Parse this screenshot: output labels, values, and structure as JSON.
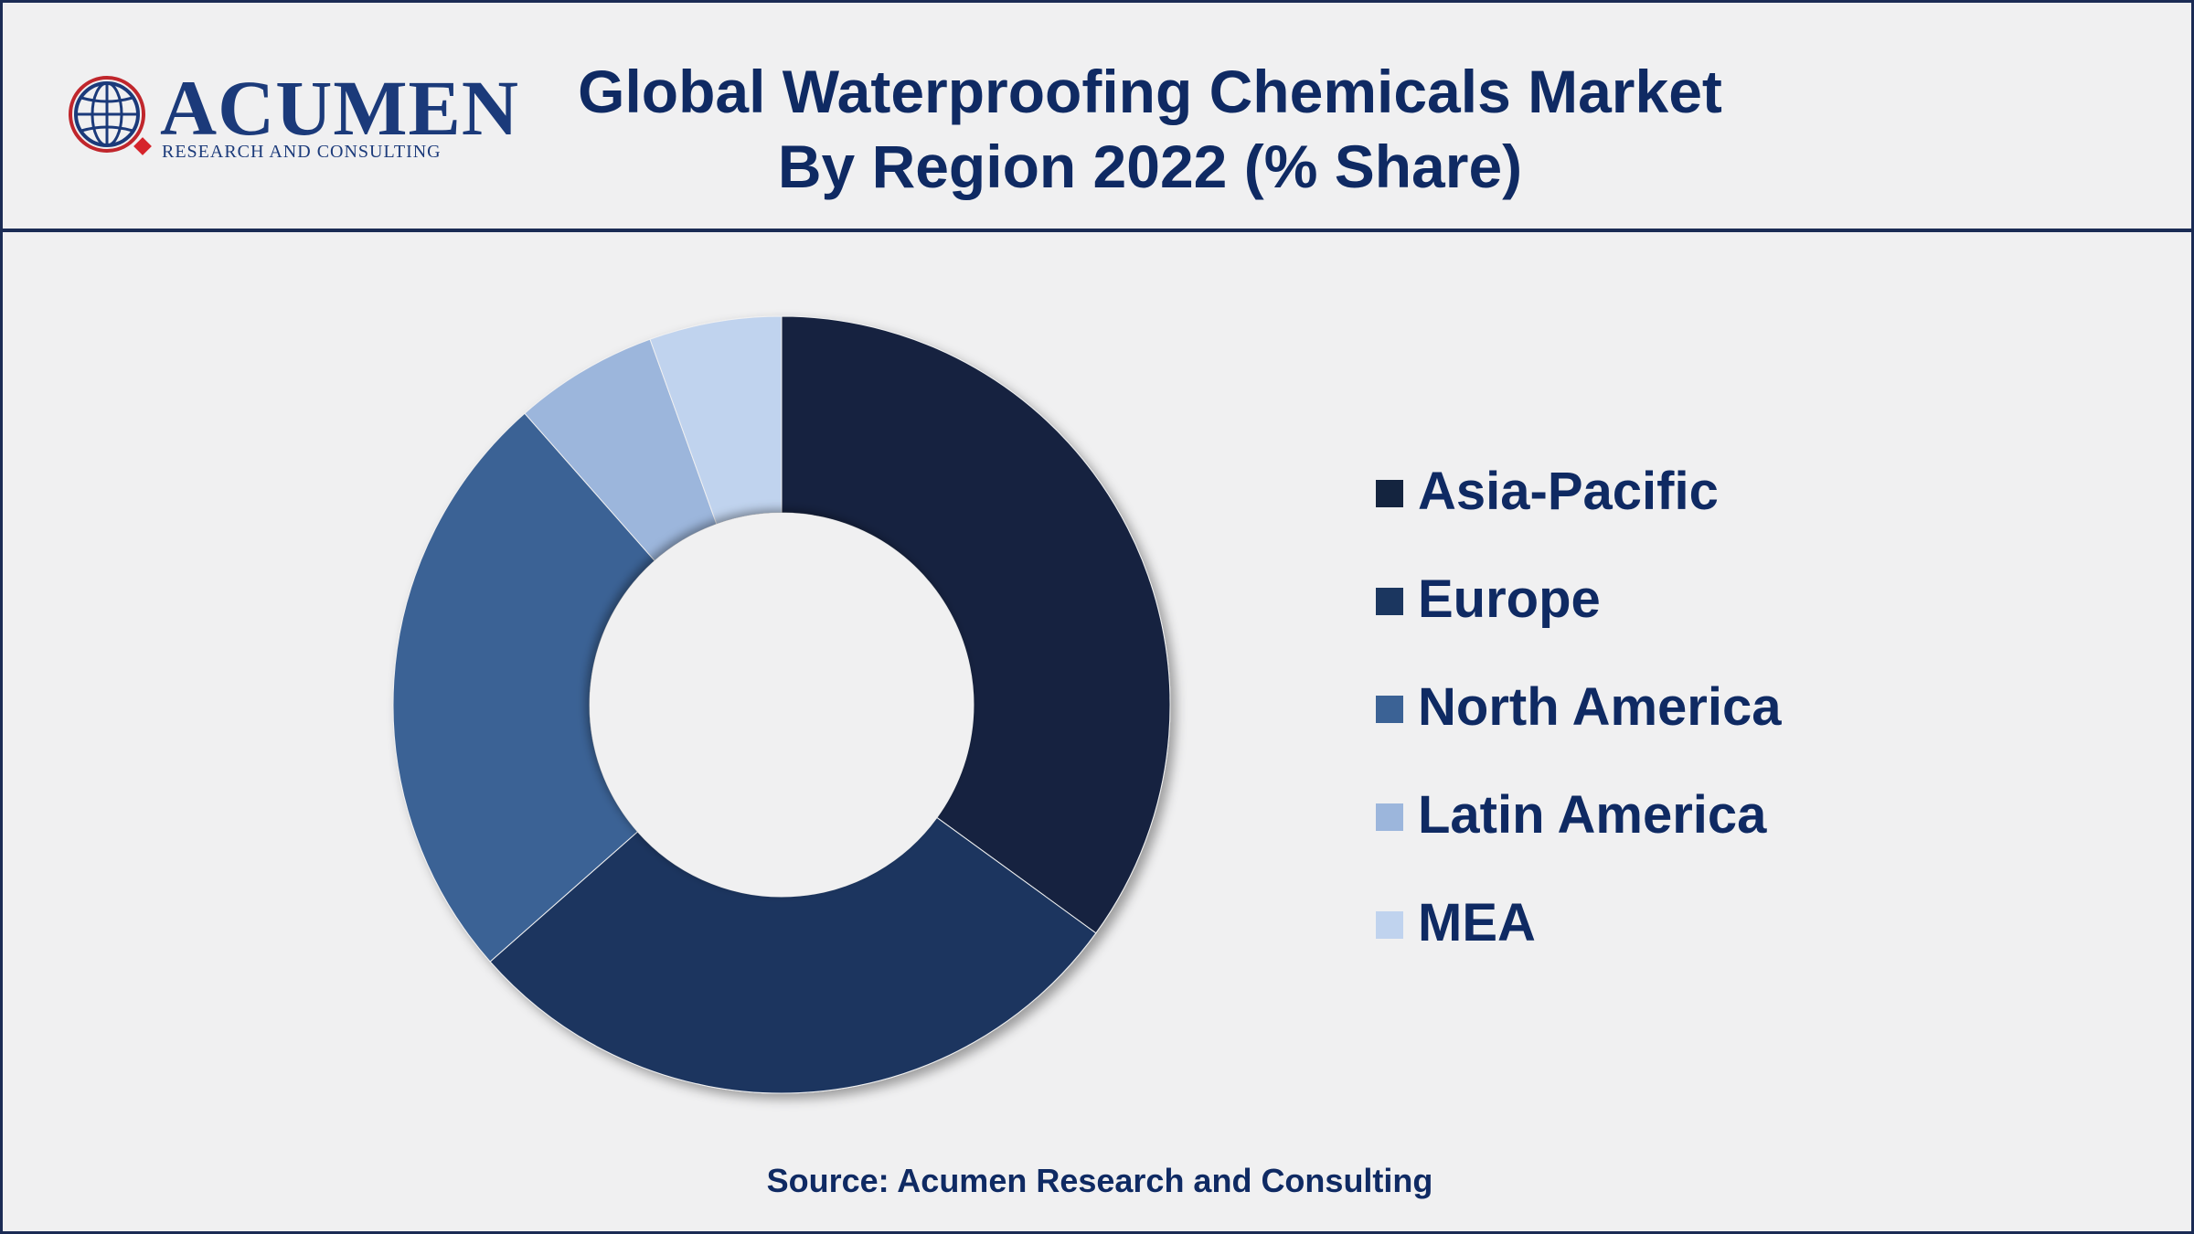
{
  "header": {
    "title_line1": "Global Waterproofing Chemicals Market",
    "title_line2": "By Region 2022 (% Share)"
  },
  "logo": {
    "word": "ACUMEN",
    "subtitle": "RESEARCH AND CONSULTING",
    "icon": "globe-icon"
  },
  "chart_data": {
    "type": "pie",
    "variant": "donut",
    "title": "Global Waterproofing Chemicals Market By Region 2022 (% Share)",
    "categories": [
      "Asia-Pacific",
      "Europe",
      "North America",
      "Latin America",
      "MEA"
    ],
    "values": [
      35.0,
      28.5,
      25.0,
      6.0,
      5.5
    ],
    "colors": [
      "#14243f",
      "#1b365f",
      "#3b6295",
      "#9cb6dc",
      "#c0d3ee"
    ],
    "legend": "right"
  },
  "footer": {
    "source": "Source: Acumen Research and Consulting"
  },
  "colors": {
    "background": "#f0f0f1",
    "title": "#0f2a63",
    "border": "#1b2c55"
  }
}
